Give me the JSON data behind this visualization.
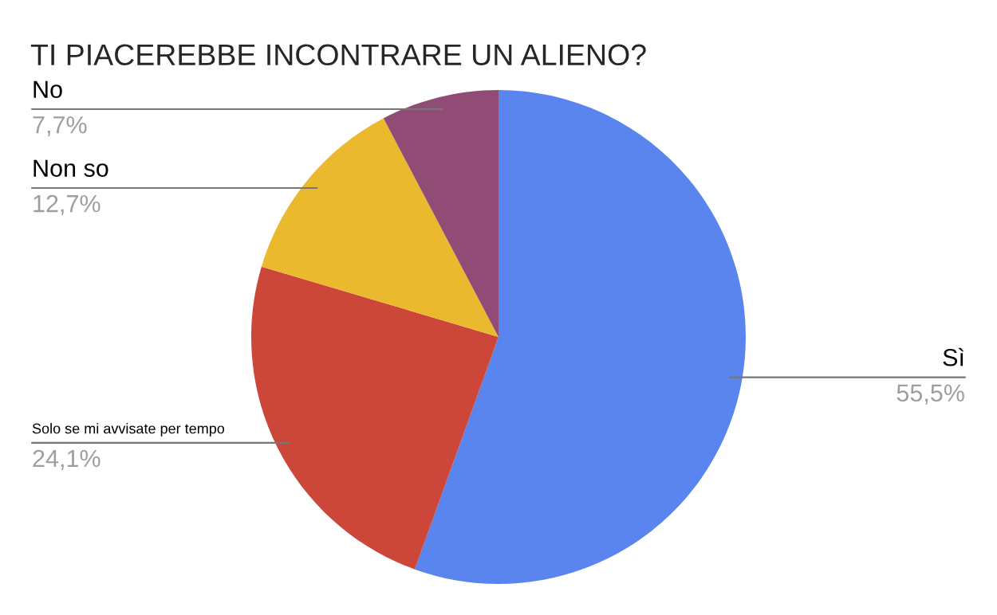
{
  "chart_data": {
    "type": "pie",
    "title": "TI PIACEREBBE INCONTRARE UN ALIENO?",
    "categories": [
      "Sì",
      "Solo se mi avvisate per tempo",
      "Non so",
      "No"
    ],
    "values": [
      55.5,
      24.1,
      12.7,
      7.7
    ],
    "value_labels": [
      "55,5%",
      "24,1%",
      "12,7%",
      "7,7%"
    ],
    "colors": [
      "#5b85ee",
      "#cc4639",
      "#ebb92e",
      "#914c76"
    ]
  }
}
